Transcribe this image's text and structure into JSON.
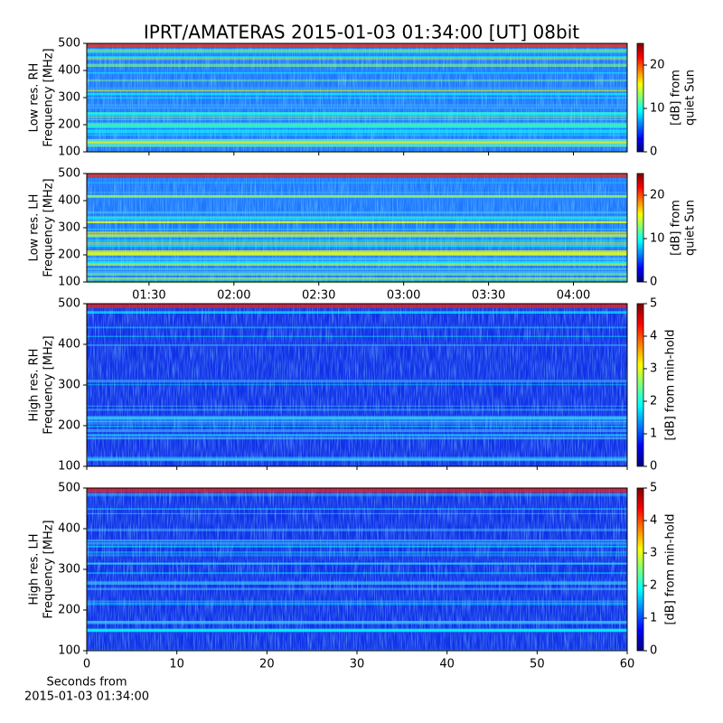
{
  "title": "IPRT/AMATERAS 2015-01-03 01:34:00 [UT]   08bit",
  "chart_data": [
    {
      "type": "spectrogram",
      "ylabel": [
        "Low res. RH",
        "Frequency [MHz]"
      ],
      "ylim": [
        100,
        500
      ],
      "yticks": [
        100,
        200,
        300,
        400,
        500
      ],
      "xlim": [
        "01:08",
        "04:19"
      ],
      "colorbar_label": [
        "[dB] from",
        "quiet Sun"
      ],
      "clim": [
        0,
        25
      ],
      "cticks": [
        0,
        10,
        20
      ],
      "colormap": "jet"
    },
    {
      "type": "spectrogram",
      "ylabel": [
        "Low res. LH",
        "Frequency [MHz]"
      ],
      "ylim": [
        100,
        500
      ],
      "yticks": [
        100,
        200,
        300,
        400,
        500
      ],
      "xlim": [
        "01:08",
        "04:19"
      ],
      "xticks": [
        "01:30",
        "02:00",
        "02:30",
        "03:00",
        "03:30",
        "04:00"
      ],
      "colorbar_label": [
        "[dB] from",
        "quiet Sun"
      ],
      "clim": [
        0,
        25
      ],
      "cticks": [
        0,
        10,
        20
      ],
      "colormap": "jet"
    },
    {
      "type": "spectrogram",
      "ylabel": [
        "High res. RH",
        "Frequency [MHz]"
      ],
      "ylim": [
        100,
        500
      ],
      "yticks": [
        100,
        200,
        300,
        400,
        500
      ],
      "xlim": [
        0,
        60
      ],
      "colorbar_label": [
        "[dB] from min-hold"
      ],
      "clim": [
        0,
        5
      ],
      "cticks": [
        0,
        1,
        2,
        3,
        4,
        5
      ],
      "colormap": "jet"
    },
    {
      "type": "spectrogram",
      "ylabel": [
        "High res. LH",
        "Frequency [MHz]"
      ],
      "ylim": [
        100,
        500
      ],
      "yticks": [
        100,
        200,
        300,
        400,
        500
      ],
      "xlim": [
        0,
        60
      ],
      "xticks": [
        0,
        10,
        20,
        30,
        40,
        50,
        60
      ],
      "xlabel": [
        "Seconds from",
        "2015-01-03 01:34:00"
      ],
      "colorbar_label": [
        "[dB] from min-hold"
      ],
      "clim": [
        0,
        5
      ],
      "cticks": [
        0,
        1,
        2,
        3,
        4,
        5
      ],
      "colormap": "jet"
    }
  ]
}
